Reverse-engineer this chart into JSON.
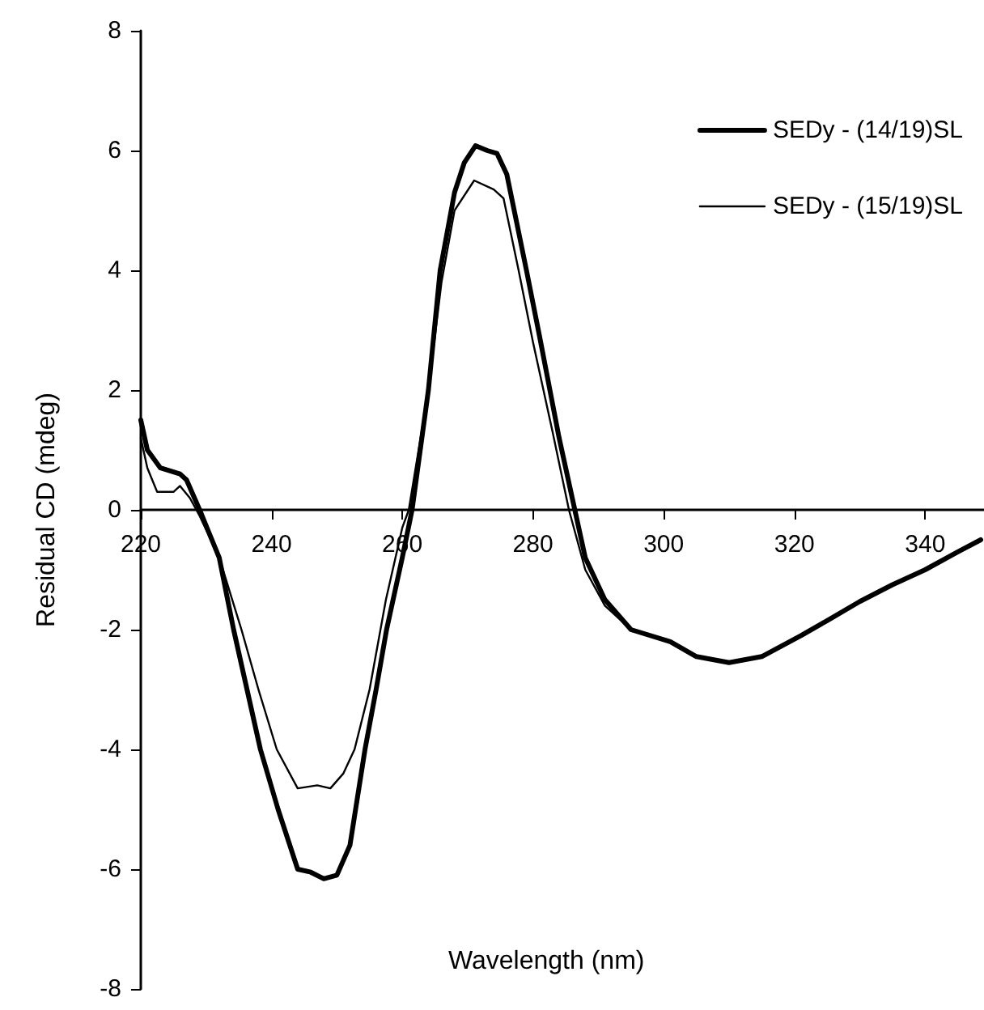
{
  "chart_data": {
    "type": "line",
    "xlabel": "Wavelength (nm)",
    "ylabel": "Residual CD (mdeg)",
    "xlim": [
      220,
      349
    ],
    "xticks": [
      220,
      240,
      260,
      280,
      300,
      320,
      340
    ],
    "ylim": [
      -8,
      8
    ],
    "yticks": [
      -8,
      -6,
      -4,
      -2,
      0,
      2,
      4,
      6,
      8
    ],
    "grid": false,
    "legend": "top right",
    "marker": "none",
    "line_style": "solid",
    "series": [
      {
        "name": "SEDy - (14/19)SL",
        "color": "#000000",
        "x": [
          220,
          221,
          223,
          226,
          227,
          229,
          232,
          234.2,
          238.3,
          241,
          244,
          246,
          248,
          250,
          252,
          254.3,
          256,
          257.6,
          260,
          261.5,
          264,
          265.8,
          268,
          269.5,
          271.2,
          273,
          274.5,
          276,
          279,
          281,
          284,
          286.4,
          288,
          291,
          295,
          301,
          305,
          310,
          315,
          321,
          325,
          330,
          335,
          340,
          345,
          348.5
        ],
        "values": [
          1.5,
          1.0,
          0.7,
          0.6,
          0.5,
          0,
          -0.8,
          -2.0,
          -4.0,
          -5.0,
          -6.0,
          -6.05,
          -6.16,
          -6.1,
          -5.6,
          -4.0,
          -3.0,
          -2.0,
          -0.8,
          0,
          2.0,
          4.0,
          5.3,
          5.8,
          6.08,
          6.0,
          5.95,
          5.6,
          4.0,
          2.9,
          1.2,
          0,
          -0.8,
          -1.5,
          -2.0,
          -2.2,
          -2.45,
          -2.55,
          -2.45,
          -2.1,
          -1.85,
          -1.53,
          -1.25,
          -1.0,
          -0.7,
          -0.5
        ]
      },
      {
        "name": "SEDy - (15/19)SL",
        "color": "#000000",
        "x": [
          220,
          221,
          222.5,
          225,
          226,
          227.5,
          229,
          232,
          235.4,
          238,
          240.8,
          244,
          247,
          249,
          251,
          252.7,
          255,
          257.5,
          260,
          261,
          264,
          266,
          268,
          271,
          274,
          275.5,
          277.8,
          280,
          283,
          285.5,
          288,
          291,
          295,
          301,
          305,
          310,
          315,
          321,
          325,
          330,
          335,
          340,
          345,
          348.5
        ],
        "values": [
          1.2,
          0.7,
          0.3,
          0.3,
          0.4,
          0.2,
          -0.1,
          -0.8,
          -2.0,
          -3.0,
          -4.0,
          -4.65,
          -4.6,
          -4.65,
          -4.4,
          -4.0,
          -3.0,
          -1.5,
          -0.3,
          0,
          2.0,
          3.8,
          5.0,
          5.5,
          5.35,
          5.2,
          4.0,
          2.8,
          1.3,
          0,
          -1.0,
          -1.6,
          -2.0,
          -2.2,
          -2.45,
          -2.55,
          -2.45,
          -2.1,
          -1.85,
          -1.53,
          -1.25,
          -1.0,
          -0.7,
          -0.5
        ]
      }
    ]
  }
}
